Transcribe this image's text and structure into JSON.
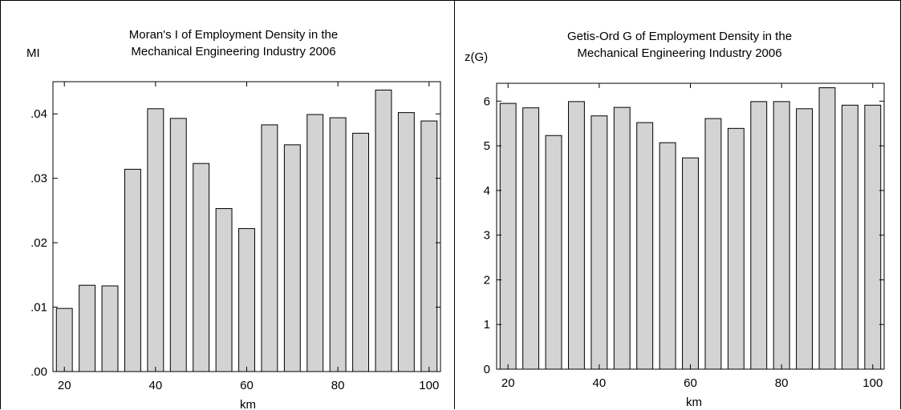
{
  "chart_data": [
    {
      "type": "bar",
      "title": "Moran's I of Employment Density in the",
      "subtitle": "Mechanical Engineering Industry 2006",
      "ylabel": "MI",
      "xlabel": "km",
      "x": [
        20,
        25,
        30,
        35,
        40,
        45,
        50,
        55,
        60,
        65,
        70,
        75,
        80,
        85,
        90,
        95,
        100
      ],
      "values": [
        0.0098,
        0.0134,
        0.0133,
        0.0314,
        0.0408,
        0.0393,
        0.0323,
        0.0253,
        0.0222,
        0.0383,
        0.0352,
        0.0399,
        0.0394,
        0.037,
        0.0437,
        0.0402,
        0.0389
      ],
      "xticks": [
        "20",
        "40",
        "60",
        "80",
        "100"
      ],
      "xtick_values": [
        20,
        40,
        60,
        80,
        100
      ],
      "yticks": [
        ".00",
        ".01",
        ".02",
        ".03",
        ".04"
      ],
      "ytick_values": [
        0,
        0.01,
        0.02,
        0.03,
        0.04
      ],
      "xlim": [
        17.5,
        102.5
      ],
      "ylim": [
        0,
        0.045
      ],
      "grid": false,
      "bar_color": "#d3d3d3",
      "edge_color": "#000000"
    },
    {
      "type": "bar",
      "title": "Getis-Ord G of Employment Density in the",
      "subtitle": "Mechanical Engineering Industry 2006",
      "ylabel": "z(G)",
      "xlabel": "km",
      "x": [
        20,
        25,
        30,
        35,
        40,
        45,
        50,
        55,
        60,
        65,
        70,
        75,
        80,
        85,
        90,
        95,
        100
      ],
      "values": [
        5.95,
        5.85,
        5.23,
        5.99,
        5.67,
        5.86,
        5.52,
        5.07,
        4.73,
        5.61,
        5.39,
        5.99,
        5.99,
        5.83,
        6.3,
        5.91,
        5.91
      ],
      "xticks": [
        "20",
        "40",
        "60",
        "80",
        "100"
      ],
      "xtick_values": [
        20,
        40,
        60,
        80,
        100
      ],
      "yticks": [
        "0",
        "1",
        "2",
        "3",
        "4",
        "5",
        "6"
      ],
      "ytick_values": [
        0,
        1,
        2,
        3,
        4,
        5,
        6
      ],
      "xlim": [
        17.5,
        102.5
      ],
      "ylim": [
        0,
        6.4
      ],
      "grid": false,
      "bar_color": "#d3d3d3",
      "edge_color": "#000000"
    }
  ]
}
